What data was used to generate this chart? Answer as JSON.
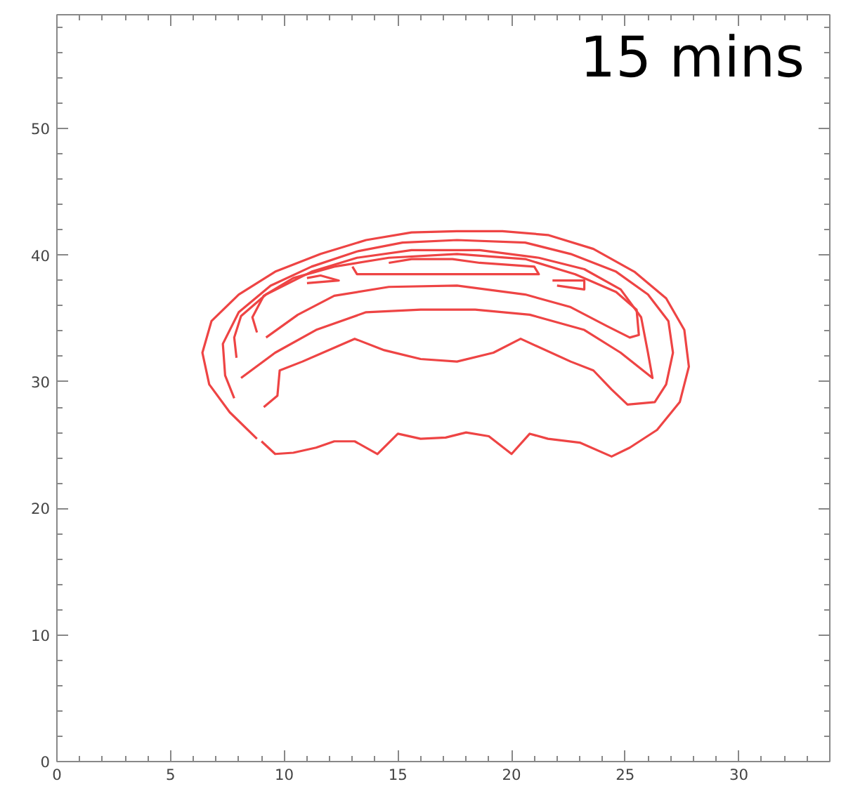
{
  "chart_data": {
    "type": "line",
    "annotations": [
      "15 mins"
    ],
    "xlim": [
      0,
      34
    ],
    "ylim": [
      0,
      59
    ],
    "xticks": [
      0,
      5,
      10,
      15,
      20,
      25,
      30
    ],
    "yticks": [
      0,
      10,
      20,
      30,
      40,
      50
    ],
    "grid": false,
    "line_style": "solid",
    "marker": "none",
    "series": [
      {
        "color": "#ee4444",
        "x": [
          9.0,
          9.6,
          10.4,
          11.4,
          12.2,
          13.1,
          14.1,
          15.0,
          16.0,
          17.1,
          18.0,
          19.0,
          20.0,
          20.8,
          21.6,
          23.0,
          24.4,
          25.2,
          26.4,
          27.4,
          27.8,
          27.6,
          26.8,
          25.4,
          23.6,
          21.6,
          19.6,
          17.6,
          15.6,
          13.6,
          11.6,
          9.6,
          8.0,
          6.8,
          6.4,
          6.7,
          7.6,
          8.8
        ],
        "values": [
          25.3,
          24.3,
          24.4,
          24.8,
          25.3,
          25.3,
          24.3,
          25.9,
          25.5,
          25.6,
          26.0,
          25.7,
          24.3,
          25.9,
          25.5,
          25.2,
          24.1,
          24.8,
          26.2,
          28.4,
          31.2,
          34.1,
          36.6,
          38.7,
          40.5,
          41.6,
          41.9,
          41.9,
          41.8,
          41.2,
          40.1,
          38.7,
          36.9,
          34.8,
          32.3,
          29.8,
          27.6,
          25.5
        ]
      },
      {
        "color": "#ee4444",
        "x": [
          9.1,
          9.7,
          9.8,
          10.8,
          13.1,
          14.4,
          16.0,
          17.6,
          19.2,
          20.4,
          22.6,
          23.6,
          24.4,
          25.1,
          26.3,
          26.8,
          27.1,
          26.9,
          26.0,
          24.6,
          22.6,
          20.6,
          17.6,
          15.2,
          13.2,
          11.2,
          9.4,
          8.0,
          7.3,
          7.4,
          7.8
        ],
        "values": [
          28.0,
          28.9,
          30.9,
          31.6,
          33.4,
          32.5,
          31.8,
          31.6,
          32.3,
          33.4,
          31.6,
          30.9,
          29.4,
          28.2,
          28.4,
          29.8,
          32.3,
          34.8,
          36.9,
          38.7,
          40.1,
          41.0,
          41.2,
          41.0,
          40.3,
          39.1,
          37.6,
          35.5,
          33.0,
          30.5,
          28.7
        ]
      },
      {
        "color": "#ee4444",
        "x": [
          8.1,
          9.6,
          11.4,
          13.6,
          16.0,
          18.4,
          20.8,
          23.2,
          24.8,
          26.2,
          26.0,
          25.7,
          24.8,
          23.2,
          21.2,
          18.6,
          15.6,
          13.2,
          11.2,
          9.2,
          8.1,
          7.8,
          7.9
        ],
        "values": [
          30.3,
          32.3,
          34.1,
          35.5,
          35.7,
          35.7,
          35.3,
          34.1,
          32.3,
          30.3,
          32.3,
          35.1,
          37.3,
          38.9,
          39.8,
          40.4,
          40.4,
          39.8,
          38.7,
          36.9,
          35.2,
          33.5,
          31.9
        ]
      },
      {
        "color": "#ee4444",
        "x": [
          8.8,
          8.6,
          9.1,
          10.4,
          12.2,
          14.6,
          17.6,
          20.6,
          22.8,
          24.6,
          25.5,
          25.6,
          25.2,
          24.2,
          22.6,
          20.6,
          17.6,
          14.6,
          12.2,
          10.6,
          9.2
        ],
        "values": [
          33.9,
          35.1,
          36.8,
          38.2,
          39.1,
          39.8,
          40.1,
          39.7,
          38.5,
          37.1,
          35.7,
          33.7,
          33.5,
          34.4,
          35.9,
          36.9,
          37.6,
          37.5,
          36.8,
          35.3,
          33.5
        ]
      },
      {
        "color": "#ee4444",
        "x": [
          13.0,
          13.2,
          21.2,
          21.0,
          18.6,
          17.4,
          15.6,
          14.6
        ],
        "values": [
          39.1,
          38.5,
          38.5,
          39.1,
          39.4,
          39.7,
          39.7,
          39.4
        ]
      },
      {
        "color": "#ee4444",
        "x": [
          11.0,
          12.4,
          11.6,
          11.0
        ],
        "values": [
          37.8,
          38.0,
          38.4,
          38.2
        ]
      },
      {
        "color": "#ee4444",
        "x": [
          21.8,
          23.2,
          23.2,
          22.0
        ],
        "values": [
          38.0,
          38.0,
          37.3,
          37.6
        ]
      }
    ]
  }
}
